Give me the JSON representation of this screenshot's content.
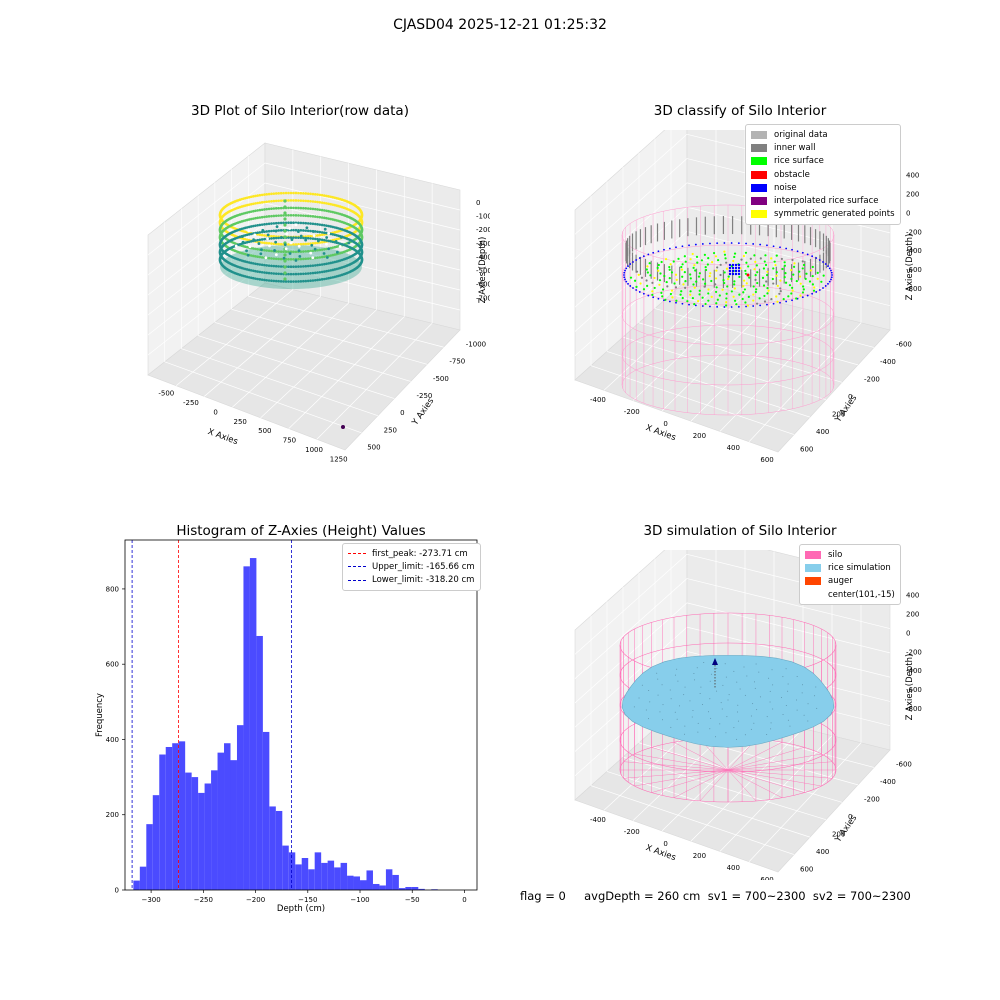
{
  "suptitle": "CJASD04 2025-12-21 01:25:32",
  "panel1": {
    "title": "3D Plot of Silo Interior(row data)",
    "xlabel": "X Axies",
    "ylabel": "Y Axies",
    "zlabel": "Z Axies (Depth)",
    "xticks": [
      "-500",
      "-250",
      "0",
      "250",
      "500",
      "750",
      "1000",
      "1250"
    ],
    "yticks": [
      "500",
      "250",
      "0",
      "-250",
      "-500",
      "-750",
      "-1000"
    ],
    "zticks": [
      "0",
      "-100",
      "-200",
      "-300",
      "-400",
      "-500",
      "-600",
      "-700"
    ],
    "colormap": [
      "#440154",
      "#21918c",
      "#5ec962",
      "#fde725"
    ]
  },
  "panel2": {
    "title": "3D classify of Silo Interior",
    "xlabel": "X Axies",
    "ylabel": "Y Axies",
    "zlabel": "Z Axies (Depth)",
    "xticks": [
      "-400",
      "-200",
      "0",
      "200",
      "400",
      "600"
    ],
    "yticks": [
      "600",
      "400",
      "200",
      "0",
      "-200",
      "-400",
      "-600"
    ],
    "zticks": [
      "400",
      "200",
      "0",
      "-200",
      "-400",
      "-600",
      "-800"
    ],
    "legend": [
      {
        "label": "original data",
        "color": "#b3b3b3"
      },
      {
        "label": "inner wall",
        "color": "#808080"
      },
      {
        "label": "rice surface",
        "color": "#00ff00"
      },
      {
        "label": "obstacle",
        "color": "#ff0000"
      },
      {
        "label": "noise",
        "color": "#0000ff"
      },
      {
        "label": "interpolated rice surface",
        "color": "#800080"
      },
      {
        "label": "symmetric generated points",
        "color": "#ffff00"
      }
    ]
  },
  "panel4": {
    "title": "3D simulation of Silo Interior",
    "xlabel": "X Axies",
    "ylabel": "Y Axies",
    "zlabel": "Z Axies (Depth)",
    "xticks": [
      "-400",
      "-200",
      "0",
      "200",
      "400",
      "600"
    ],
    "yticks": [
      "600",
      "400",
      "200",
      "0",
      "-200",
      "-400",
      "-600"
    ],
    "zticks": [
      "400",
      "200",
      "0",
      "-200",
      "-400",
      "-600",
      "-800"
    ],
    "legend": [
      {
        "label": "silo",
        "color": "#ff69b4"
      },
      {
        "label": "rice simulation",
        "color": "#87ceeb"
      },
      {
        "label": "auger",
        "color": "#ff4500"
      },
      {
        "label": "center(101,-15)",
        "color": ""
      }
    ]
  },
  "footer": "flag = 0     avgDepth = 260 cm  sv1 = 700~2300  sv2 = 700~2300",
  "chart_data": {
    "type": "bar",
    "title": "Histogram of Z-Axies (Height) Values",
    "xlabel": "Depth (cm)",
    "ylabel": "Frequency",
    "xlim": [
      -325,
      12
    ],
    "ylim": [
      0,
      930
    ],
    "xticks": [
      -300,
      -250,
      -200,
      -150,
      -100,
      -50,
      0
    ],
    "yticks": [
      0,
      200,
      400,
      600,
      800
    ],
    "bin_start": -317,
    "bin_width": 6.2,
    "values": [
      25,
      62,
      175,
      252,
      360,
      380,
      390,
      395,
      312,
      300,
      258,
      283,
      318,
      365,
      390,
      345,
      438,
      860,
      882,
      675,
      420,
      222,
      210,
      118,
      100,
      68,
      85,
      55,
      100,
      72,
      78,
      60,
      72,
      38,
      36,
      26,
      52,
      16,
      12,
      55,
      40,
      5,
      8,
      8,
      3,
      0,
      2
    ],
    "bar_color": "#4b4bff",
    "reference_lines": [
      {
        "label": "first_peak: -273.71 cm",
        "value": -273.71,
        "color": "#ff0000"
      },
      {
        "label": "Upper_limit: -165.66 cm",
        "value": -165.66,
        "color": "#0000cc"
      },
      {
        "label": "Lower_limit: -318.20 cm",
        "value": -318.2,
        "color": "#0000cc"
      }
    ],
    "legend_position": "top-right"
  }
}
